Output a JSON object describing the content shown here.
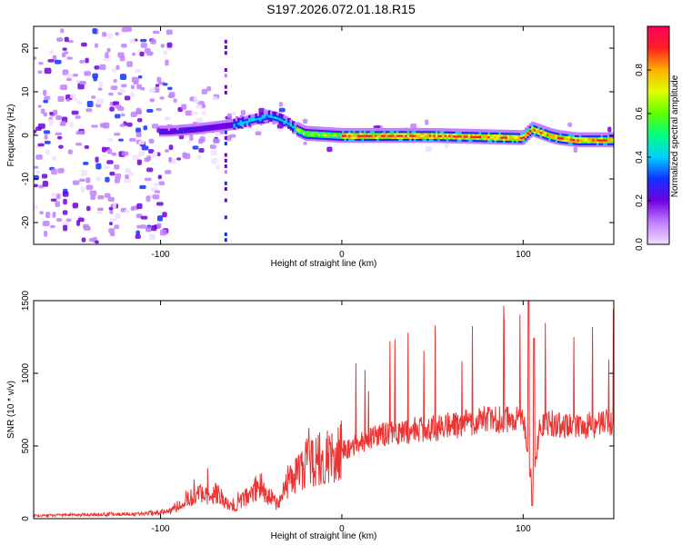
{
  "title": "S197.2026.072.01.18.R15",
  "chart_data": [
    {
      "type": "heatmap",
      "name": "spectrogram",
      "xlabel": "Height of straight line (km)",
      "ylabel": "Frequency (Hz)",
      "xlim": [
        -170,
        150
      ],
      "ylim": [
        -25,
        25
      ],
      "xticks": [
        -100,
        0,
        100
      ],
      "xtick_labels": [
        "-100",
        "0",
        "100"
      ],
      "yticks": [
        -20,
        -10,
        0,
        10,
        20
      ],
      "ytick_labels": [
        "-20",
        "-10",
        "0",
        "10",
        "20"
      ],
      "colorbar": {
        "label": "Normalized spectral amplitude",
        "range": [
          0,
          1
        ],
        "ticks": [
          0.0,
          0.2,
          0.4,
          0.6,
          0.8
        ],
        "tick_labels": [
          "0.0",
          "0.2",
          "0.4",
          "0.6",
          "0.8"
        ],
        "colors": [
          "#f0e0ff",
          "#c080ff",
          "#7000e0",
          "#1030ff",
          "#00d0ff",
          "#00ff80",
          "#60ff00",
          "#e0ff00",
          "#ffb000",
          "#ff2020",
          "#ff0060"
        ]
      },
      "ridge": {
        "x": [
          -95,
          -80,
          -70,
          -60,
          -50,
          -40,
          -35,
          -30,
          -25,
          -20,
          0,
          50,
          100,
          105,
          115,
          120,
          130,
          150
        ],
        "freq": [
          1.0,
          1.5,
          2.0,
          2.5,
          3.5,
          4.5,
          4.0,
          3.0,
          1.5,
          0.5,
          0.0,
          0.0,
          -0.5,
          1.5,
          0.0,
          -0.5,
          -1.0,
          -1.0
        ]
      }
    },
    {
      "type": "line",
      "name": "snr",
      "xlabel": "Height of straight line (km)",
      "ylabel": "SNR (10 * v/v)",
      "xlim": [
        -170,
        150
      ],
      "ylim": [
        0,
        1500
      ],
      "xticks": [
        -100,
        0,
        100
      ],
      "xtick_labels": [
        "-100",
        "0",
        "100"
      ],
      "yticks": [
        0,
        500,
        1000,
        1500
      ],
      "ytick_labels": [
        "0",
        "500",
        "1000",
        "1500"
      ],
      "color": "#ee3333",
      "trend": {
        "x": [
          -170,
          -110,
          -95,
          -85,
          -70,
          -60,
          -45,
          -35,
          -30,
          -20,
          0,
          20,
          40,
          60,
          80,
          100,
          103,
          106,
          109,
          115,
          130,
          150
        ],
        "y": [
          20,
          35,
          50,
          150,
          180,
          70,
          230,
          90,
          250,
          380,
          470,
          570,
          610,
          640,
          680,
          700,
          350,
          250,
          640,
          660,
          640,
          660
        ]
      },
      "spikes": [
        {
          "x": 103,
          "y": 1500
        },
        {
          "x": 106,
          "y": 1240
        },
        {
          "x": 105,
          "y": 90
        }
      ]
    }
  ]
}
